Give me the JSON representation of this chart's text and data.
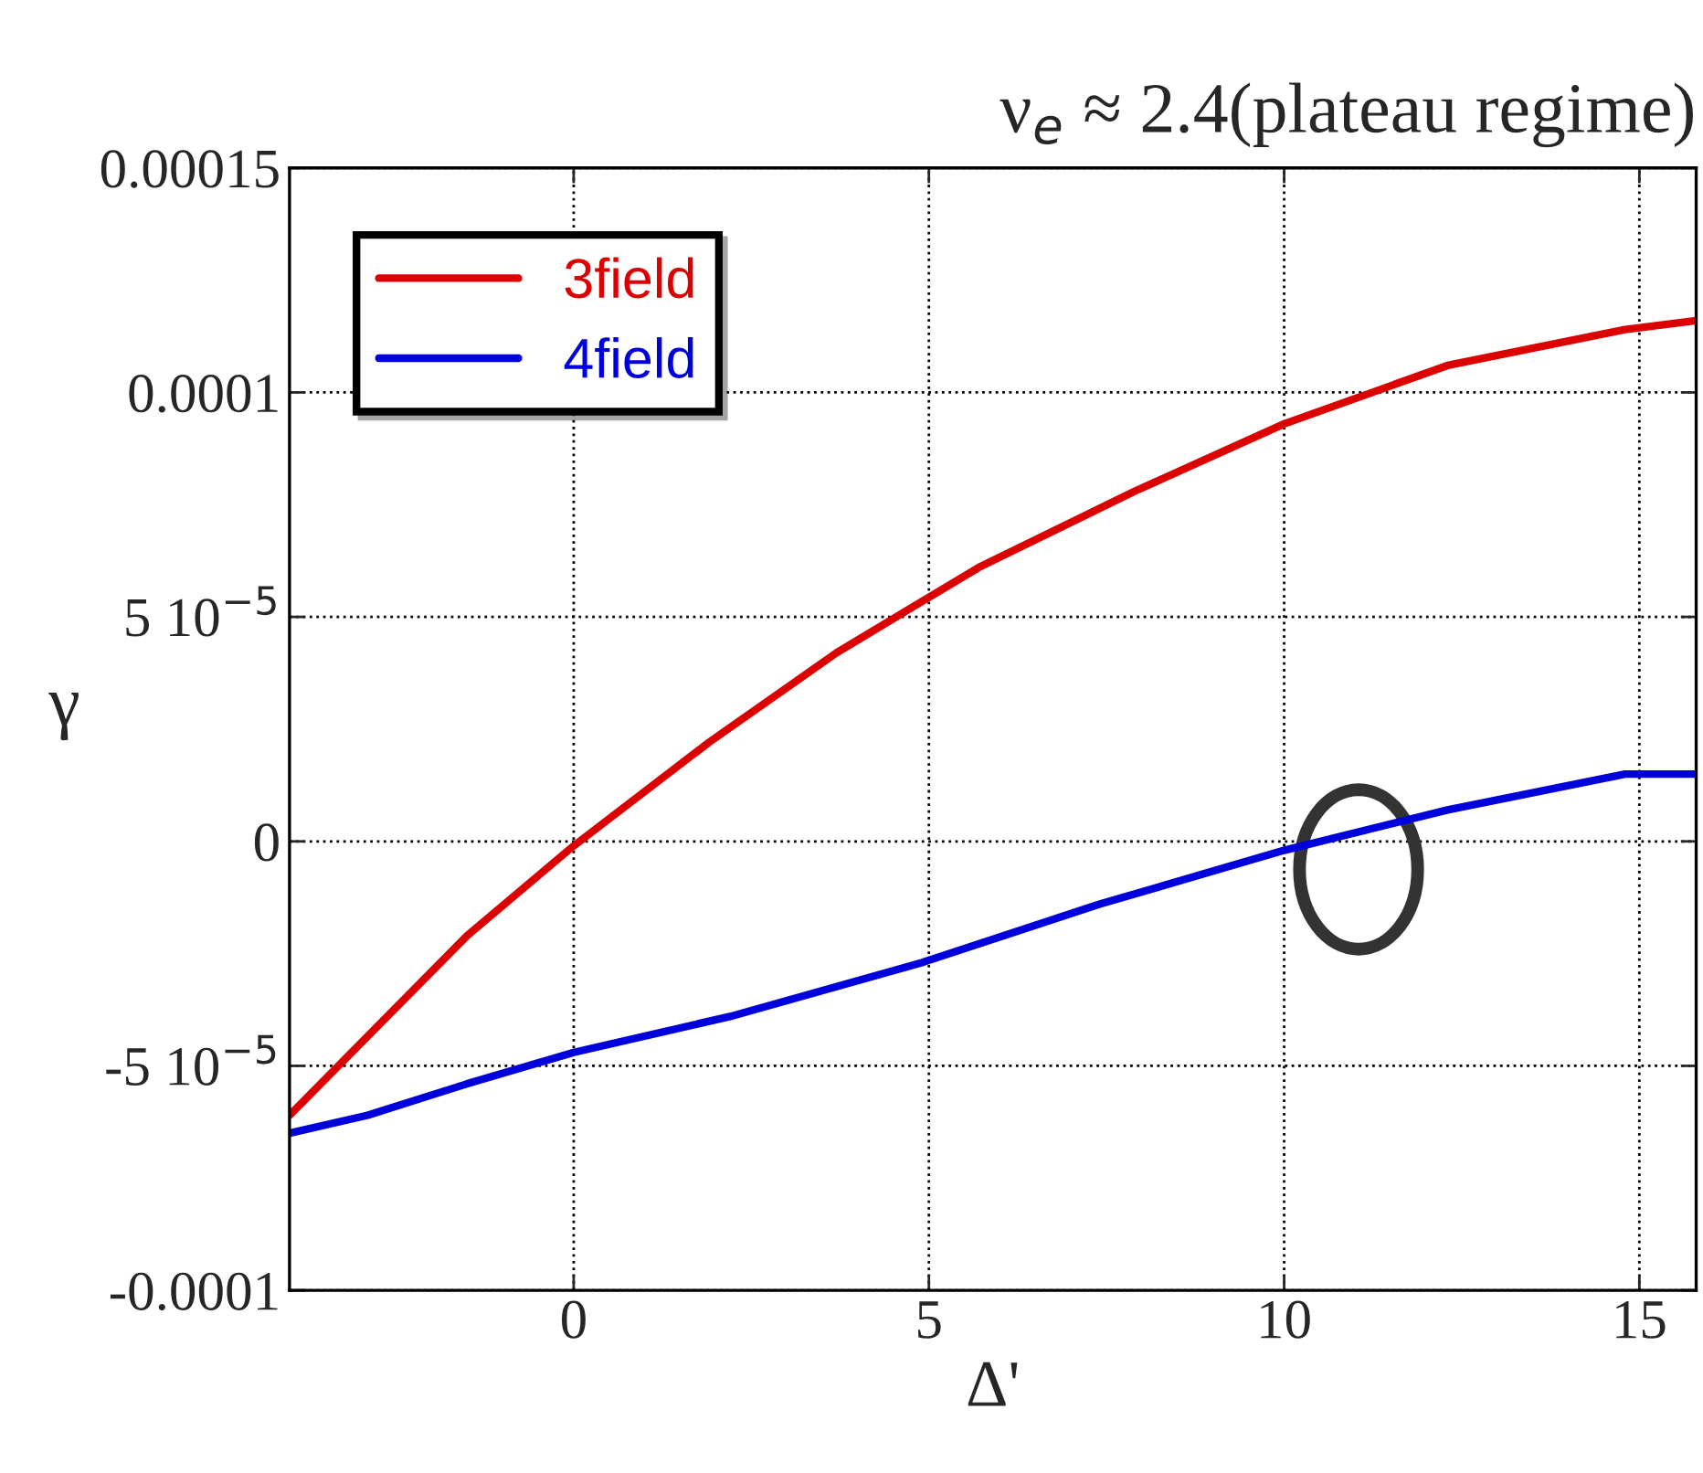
{
  "chart_data": {
    "type": "line",
    "title": "ν$_{e}$ ≈ 2.4(plateau regime)",
    "xlabel": "Δ'",
    "ylabel": "γ",
    "xlim": [
      -4,
      15.8
    ],
    "xticks": [
      0,
      5,
      10,
      15
    ],
    "ylim": [
      -0.0001,
      0.00015
    ],
    "yticks": [
      {
        "value": -0.0001,
        "label": "-0.0001"
      },
      {
        "value": -5e-05,
        "label": "-5 10$^{−5}$"
      },
      {
        "value": 0,
        "label": "0"
      },
      {
        "value": 5e-05,
        "label": "5 10$^{−5}$"
      },
      {
        "value": 0.0001,
        "label": "0.0001"
      },
      {
        "value": 0.00015,
        "label": "0.00015"
      }
    ],
    "grid": true,
    "legend": "top left",
    "marker": "none",
    "line_style": "solid",
    "series": [
      {
        "name": "3field",
        "color": "#dd0000",
        "x": [
          -4,
          -1.5,
          0,
          1.9,
          3.7,
          5.7,
          7.9,
          10,
          12.3,
          14.8,
          15.8
        ],
        "values": [
          -6.1e-05,
          -2.1e-05,
          -1e-06,
          2.2e-05,
          4.2e-05,
          6.1e-05,
          7.8e-05,
          9.3e-05,
          0.000106,
          0.000114,
          0.000116
        ]
      },
      {
        "name": "4field",
        "color": "#0000dd",
        "x": [
          -4,
          -2.9,
          -1.5,
          0,
          2.2,
          4.9,
          7.4,
          10,
          12.3,
          14.8,
          15.8
        ],
        "values": [
          -6.5e-05,
          -6.1e-05,
          -5.4e-05,
          -4.7e-05,
          -3.9e-05,
          -2.7e-05,
          -1.4e-05,
          -2e-06,
          7e-06,
          1.5e-05,
          1.5e-05
        ]
      }
    ]
  }
}
